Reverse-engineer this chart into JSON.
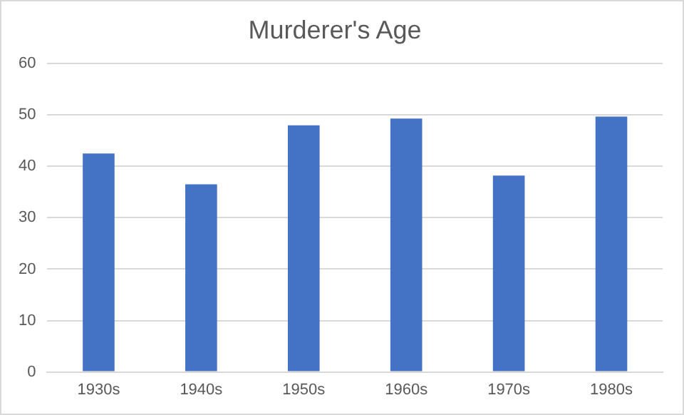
{
  "chart_data": {
    "type": "bar",
    "title": "Murderer's Age",
    "categories": [
      "1930s",
      "1940s",
      "1950s",
      "1960s",
      "1970s",
      "1980s"
    ],
    "values": [
      42.5,
      36.5,
      48,
      49.3,
      38.2,
      49.7
    ],
    "color": "#4472c4",
    "ylim": [
      0,
      60
    ],
    "yticks": [
      0,
      10,
      20,
      30,
      40,
      50,
      60
    ],
    "grid": "y",
    "legend": false
  }
}
